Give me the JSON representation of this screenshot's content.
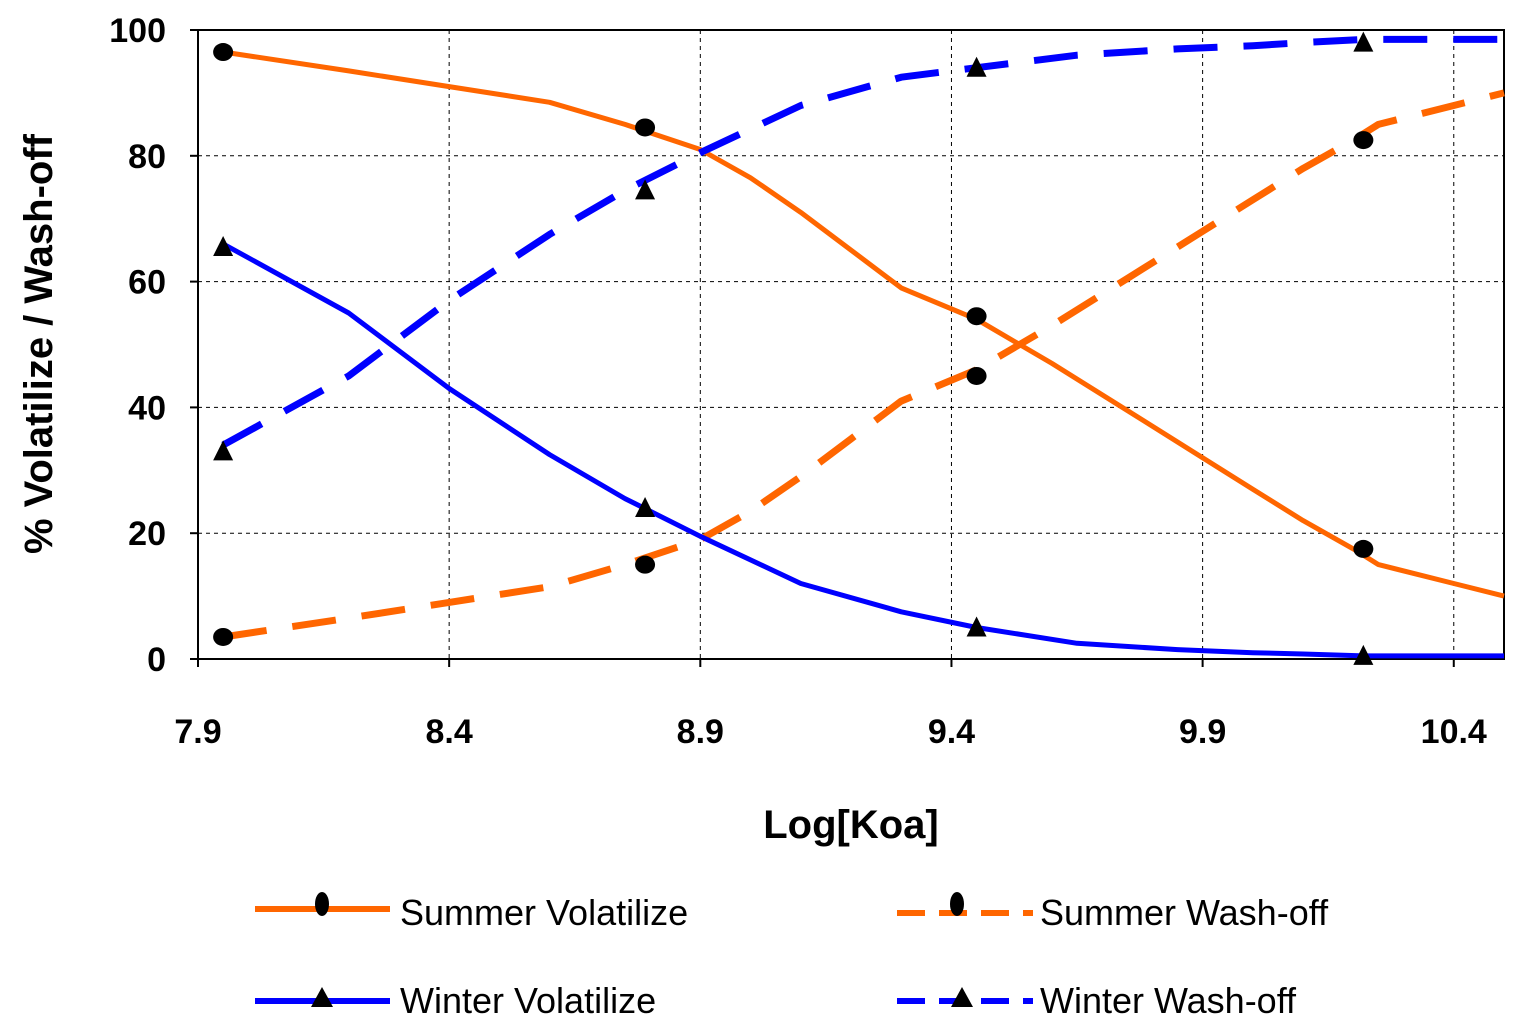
{
  "chart_data": {
    "type": "line",
    "xlabel": "Log[Koa]",
    "ylabel": "% Volatilize / Wash-off",
    "xlim": [
      7.9,
      10.5
    ],
    "ylim": [
      0,
      100
    ],
    "xticks": [
      "7.9",
      "8.4",
      "8.9",
      "9.4",
      "9.9",
      "10.4"
    ],
    "yticks": [
      "0",
      "20",
      "40",
      "60",
      "80",
      "100"
    ],
    "grid": true,
    "legend_position": "bottom",
    "colors": {
      "summer": "#FF6600",
      "winter": "#0000FF"
    },
    "series": [
      {
        "name": "Summer Volatilize",
        "line": "solid",
        "marker": "circle",
        "color": "#FF6600",
        "x": [
          7.95,
          8.2,
          8.4,
          8.6,
          8.75,
          8.9,
          9.0,
          9.1,
          9.2,
          9.3,
          9.45,
          9.6,
          9.75,
          9.9,
          10.0,
          10.1,
          10.2,
          10.25,
          10.4,
          10.5
        ],
        "y": [
          96.5,
          93.5,
          91,
          88.5,
          85,
          81,
          76.5,
          71,
          65,
          59,
          54,
          47,
          39.5,
          32,
          27,
          22,
          17.5,
          15,
          12,
          10
        ],
        "markers": {
          "x": [
            7.95,
            8.79,
            9.45,
            10.22
          ],
          "y": [
            96.5,
            84.5,
            54.5,
            17.5
          ]
        }
      },
      {
        "name": "Summer Wash-off",
        "line": "dashed",
        "marker": "circle",
        "color": "#FF6600",
        "x": [
          7.95,
          8.2,
          8.4,
          8.6,
          8.75,
          8.9,
          9.0,
          9.1,
          9.2,
          9.3,
          9.45,
          9.6,
          9.75,
          9.9,
          10.0,
          10.1,
          10.2,
          10.25,
          10.4,
          10.5
        ],
        "y": [
          3.5,
          6.5,
          9,
          11.5,
          15,
          19,
          23.5,
          29,
          35,
          41,
          46,
          53,
          60.5,
          68,
          73,
          78,
          82.5,
          85,
          88,
          90
        ],
        "markers": {
          "x": [
            7.95,
            8.79,
            9.45,
            10.22
          ],
          "y": [
            3.5,
            15,
            45,
            82.5
          ]
        }
      },
      {
        "name": "Winter Volatilize",
        "line": "solid",
        "marker": "triangle",
        "color": "#0000FF",
        "x": [
          7.95,
          8.2,
          8.4,
          8.6,
          8.75,
          8.9,
          9.1,
          9.3,
          9.45,
          9.65,
          9.85,
          10.0,
          10.1,
          10.22,
          10.35,
          10.5
        ],
        "y": [
          66,
          55,
          43,
          32.5,
          25.5,
          19.5,
          12,
          7.5,
          5,
          2.5,
          1.5,
          1,
          0.8,
          0.5,
          0.5,
          0.5
        ],
        "markers": {
          "x": [
            7.95,
            8.79,
            9.45,
            10.22
          ],
          "y": [
            65.5,
            24,
            5,
            0.5
          ]
        }
      },
      {
        "name": "Winter Wash-off",
        "line": "dashed",
        "marker": "triangle",
        "color": "#0000FF",
        "x": [
          7.95,
          8.2,
          8.4,
          8.6,
          8.75,
          8.9,
          9.1,
          9.3,
          9.45,
          9.65,
          9.85,
          10.0,
          10.1,
          10.22,
          10.35,
          10.5
        ],
        "y": [
          34,
          45,
          57,
          67.5,
          74.5,
          80.5,
          88,
          92.5,
          94,
          96,
          97,
          97.5,
          98,
          98.5,
          98.5,
          98.5
        ],
        "markers": {
          "x": [
            7.95,
            8.79,
            9.45,
            10.22
          ],
          "y": [
            33,
            74.5,
            94,
            98
          ]
        }
      }
    ]
  }
}
